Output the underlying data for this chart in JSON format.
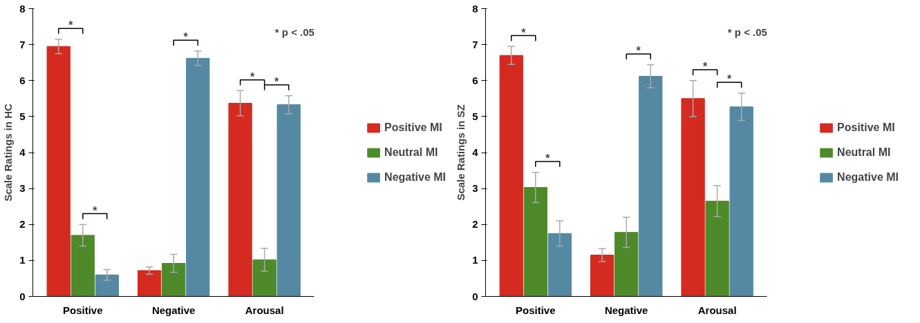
{
  "chart_data": [
    {
      "type": "bar",
      "ylabel": "Scale Ratings in HC",
      "categories": [
        "Positive",
        "Negative",
        "Arousal"
      ],
      "ylim": [
        0,
        8
      ],
      "yticks": [
        0,
        1,
        2,
        3,
        4,
        5,
        6,
        7,
        8
      ],
      "grid": false,
      "legend": "right",
      "series": [
        {
          "name": "Positive MI",
          "color": "#d42a20",
          "values": [
            6.95,
            0.72,
            5.37
          ],
          "errors": [
            0.2,
            0.1,
            0.35
          ]
        },
        {
          "name": "Neutral MI",
          "color": "#4e8a2a",
          "values": [
            1.7,
            0.92,
            1.02
          ],
          "errors": [
            0.3,
            0.25,
            0.32
          ]
        },
        {
          "name": "Negative MI",
          "color": "#5588a3",
          "values": [
            0.6,
            6.62,
            5.33
          ],
          "errors": [
            0.15,
            0.2,
            0.25
          ]
        }
      ],
      "annotations": [
        "*",
        "*",
        "*",
        "*",
        "*",
        "* p < .05"
      ]
    },
    {
      "type": "bar",
      "ylabel": "Scale Ratings in SZ",
      "categories": [
        "Positive",
        "Negative",
        "Arousal"
      ],
      "ylim": [
        0,
        8
      ],
      "yticks": [
        0,
        1,
        2,
        3,
        4,
        5,
        6,
        7,
        8
      ],
      "grid": false,
      "legend": "right",
      "series": [
        {
          "name": "Positive MI",
          "color": "#d42a20",
          "values": [
            6.7,
            1.15,
            5.5
          ],
          "errors": [
            0.25,
            0.18,
            0.5
          ]
        },
        {
          "name": "Neutral MI",
          "color": "#4e8a2a",
          "values": [
            3.03,
            1.78,
            2.65
          ],
          "errors": [
            0.42,
            0.42,
            0.43
          ]
        },
        {
          "name": "Negative MI",
          "color": "#5588a3",
          "values": [
            1.75,
            6.12,
            5.27
          ],
          "errors": [
            0.35,
            0.32,
            0.38
          ]
        }
      ],
      "annotations": [
        "*",
        "*",
        "*",
        "*",
        "*",
        "* p < .05"
      ]
    }
  ]
}
